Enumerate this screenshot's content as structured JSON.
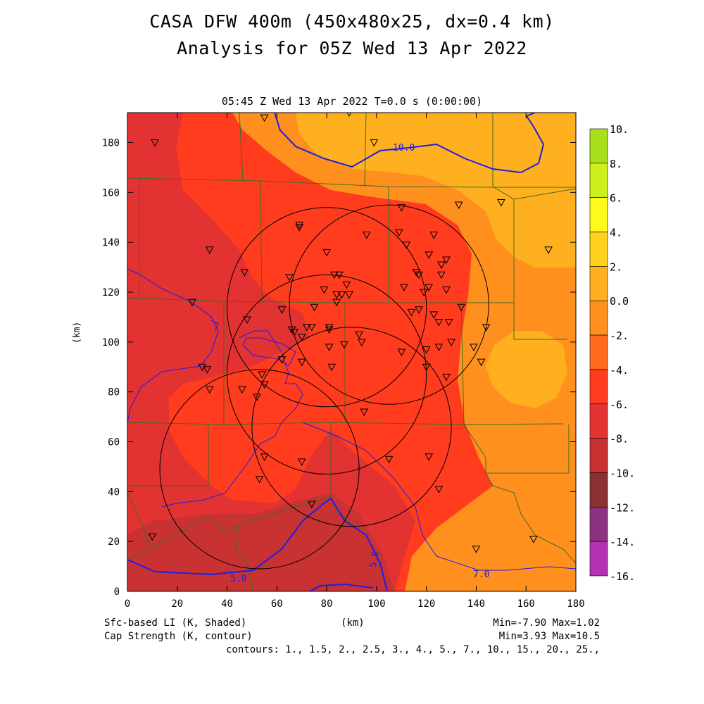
{
  "title": "CASA DFW 400m (450x480x25, dx=0.4 km)",
  "subtitle": "Analysis for 05Z Wed 13 Apr 2022",
  "panel_label": "05:45 Z Wed 13 Apr 2022   T=0.0 s (0:00:00)",
  "x_axis_label": "(km)",
  "y_axis_label": "(km)",
  "x_ticks": [
    "0",
    "20",
    "40",
    "60",
    "80",
    "100",
    "120",
    "140",
    "160",
    "180"
  ],
  "y_ticks": [
    "0",
    "20",
    "40",
    "60",
    "80",
    "100",
    "120",
    "140",
    "160",
    "180"
  ],
  "colorbar_labels": [
    "10.",
    "8.",
    "6.",
    "4.",
    "2.",
    "0.0",
    "-2.",
    "-4.",
    "-6.",
    "-8.",
    "-10.",
    "-12.",
    "-14.",
    "-16."
  ],
  "colorbar_colors": [
    "#a8e01e",
    "#ccf01e",
    "#fffa1e",
    "#ffd21e",
    "#ffb01e",
    "#ff901e",
    "#ff6a1e",
    "#ff3c1e",
    "#e23232",
    "#c83232",
    "#8a3232",
    "#8c3280",
    "#b432b4",
    "#d240dc"
  ],
  "shaded_field": "Sfc-based LI (K, Shaded)",
  "contour_field": "Cap Strength (K, contour)",
  "shaded_range": "Min=-7.90 Max=1.02",
  "contour_range": "Min=3.93 Max=10.5",
  "contours_note": "contours: 1., 1.5, 2., 2.5, 3., 4., 5., 7., 10., 15., 20., 25.,",
  "contour_labels": [
    "10.0",
    "5.0",
    "5.0",
    "7.0"
  ],
  "map_colors": {
    "background": "#ff6a1e",
    "li_m2_to_0": "#ff901e",
    "li_0_to_2": "#ffb01e",
    "li_m4_to_m2": "#ff3c1e",
    "li_m6_to_m4": "#e23232",
    "li_m8_to_m6": "#c83232",
    "county_lines": "#3c6e28",
    "contour_lines": "#1e1ee6",
    "radar_rings": "#000000"
  },
  "map_data": {
    "radar_rings": [
      {
        "center_km": [
          80,
          114
        ],
        "radius_km": 40
      },
      {
        "center_km": [
          105,
          115
        ],
        "radius_km": 40
      },
      {
        "center_km": [
          80,
          87
        ],
        "radius_km": 40
      },
      {
        "center_km": [
          90,
          66
        ],
        "radius_km": 40
      },
      {
        "center_km": [
          53,
          49
        ],
        "radius_km": 40
      }
    ],
    "station_markers_km": [
      [
        11,
        180
      ],
      [
        55,
        190
      ],
      [
        89,
        192
      ],
      [
        99,
        180
      ],
      [
        150,
        156
      ],
      [
        169,
        137
      ],
      [
        33,
        137
      ],
      [
        47,
        128
      ],
      [
        69,
        146
      ],
      [
        69,
        147
      ],
      [
        96,
        143
      ],
      [
        110,
        154
      ],
      [
        133,
        155
      ],
      [
        109,
        144
      ],
      [
        112,
        139
      ],
      [
        123,
        143
      ],
      [
        121,
        135
      ],
      [
        126,
        131
      ],
      [
        128,
        133
      ],
      [
        116,
        128
      ],
      [
        117,
        127
      ],
      [
        126,
        127
      ],
      [
        128,
        121
      ],
      [
        111,
        122
      ],
      [
        119,
        120
      ],
      [
        121,
        122
      ],
      [
        114,
        112
      ],
      [
        117,
        113
      ],
      [
        123,
        111
      ],
      [
        125,
        108
      ],
      [
        129,
        108
      ],
      [
        134,
        114
      ],
      [
        144,
        106
      ],
      [
        139,
        98
      ],
      [
        142,
        92
      ],
      [
        130,
        100
      ],
      [
        125,
        98
      ],
      [
        120,
        97
      ],
      [
        110,
        96
      ],
      [
        120,
        90
      ],
      [
        128,
        86
      ],
      [
        93,
        103
      ],
      [
        94,
        100
      ],
      [
        87,
        99
      ],
      [
        81,
        98
      ],
      [
        81,
        106
      ],
      [
        81,
        105
      ],
      [
        74,
        106
      ],
      [
        72,
        106
      ],
      [
        66,
        105
      ],
      [
        67,
        104
      ],
      [
        70,
        102
      ],
      [
        62,
        113
      ],
      [
        70,
        92
      ],
      [
        62,
        93
      ],
      [
        75,
        114
      ],
      [
        79,
        121
      ],
      [
        83,
        127
      ],
      [
        85,
        127
      ],
      [
        84,
        119
      ],
      [
        84,
        116
      ],
      [
        86,
        119
      ],
      [
        89,
        119
      ],
      [
        80,
        136
      ],
      [
        88,
        123
      ],
      [
        65,
        126
      ],
      [
        26,
        116
      ],
      [
        48,
        109
      ],
      [
        30,
        90
      ],
      [
        32,
        89
      ],
      [
        33,
        81
      ],
      [
        46,
        81
      ],
      [
        55,
        83
      ],
      [
        54,
        87
      ],
      [
        52,
        78
      ],
      [
        82,
        90
      ],
      [
        95,
        72
      ],
      [
        55,
        54
      ],
      [
        70,
        52
      ],
      [
        53,
        45
      ],
      [
        74,
        35
      ],
      [
        105,
        53
      ],
      [
        121,
        54
      ],
      [
        125,
        41
      ],
      [
        140,
        17
      ],
      [
        163,
        21
      ],
      [
        10,
        22
      ]
    ]
  }
}
